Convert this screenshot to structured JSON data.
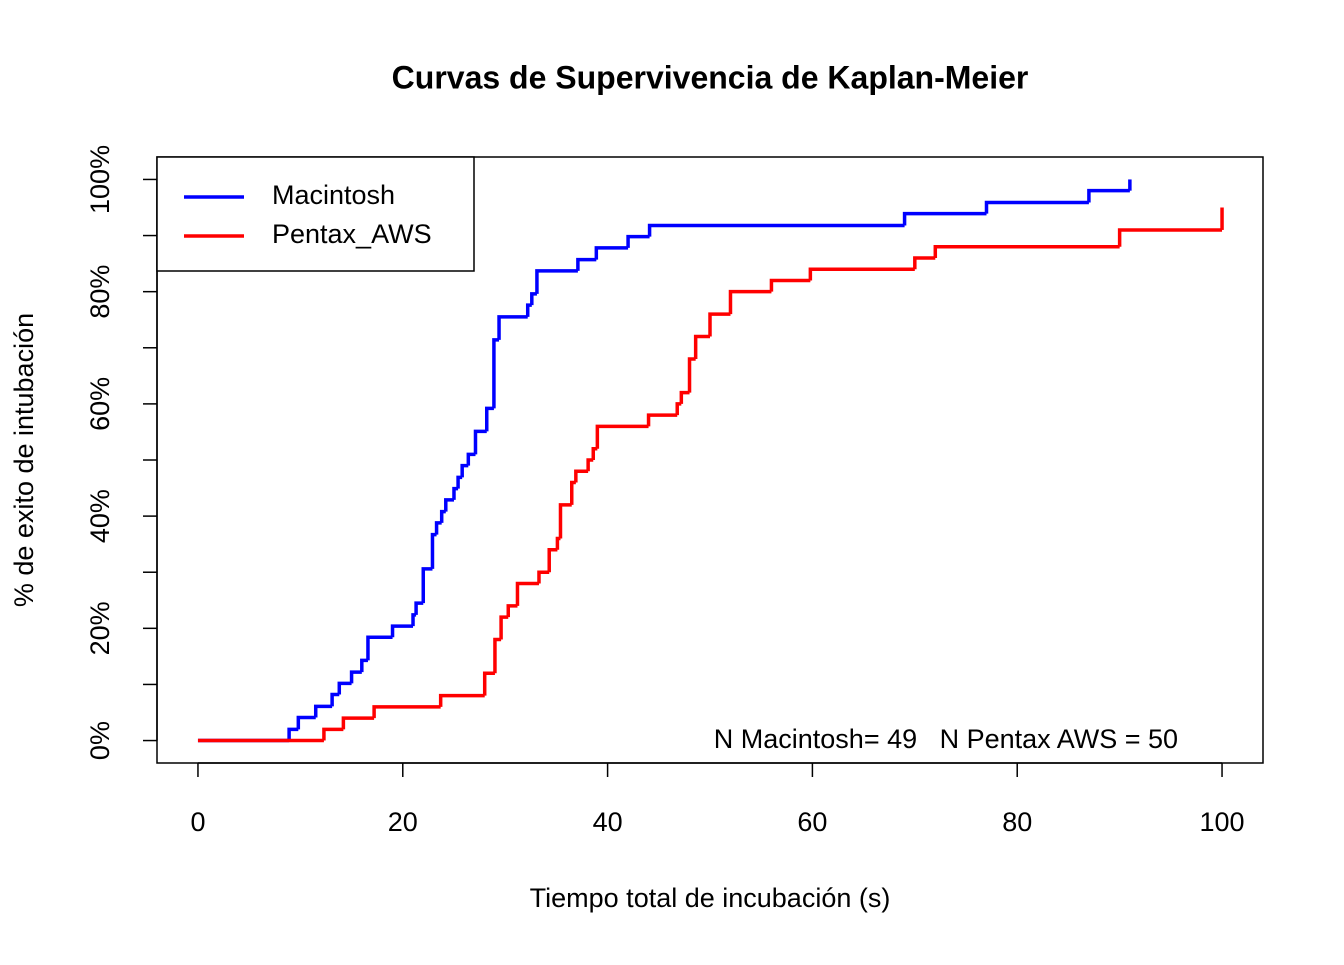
{
  "chart_data": {
    "type": "step",
    "title": "Curvas de Supervivencia de Kaplan-Meier",
    "x_label": "Tiempo total de incubación (s)",
    "y_label": "% de exito de intubación",
    "annotation": "N Macintosh= 49   N Pentax AWS = 50",
    "xlim": [
      -4,
      104
    ],
    "xticks": [
      0,
      20,
      40,
      60,
      80,
      100
    ],
    "ylim": [
      -4,
      104
    ],
    "yticks": [
      {
        "value": 0,
        "label": "0%"
      },
      {
        "value": 20,
        "label": "20%"
      },
      {
        "value": 40,
        "label": "40%"
      },
      {
        "value": 60,
        "label": "60%"
      },
      {
        "value": 80,
        "label": "80%"
      },
      {
        "value": 100,
        "label": "100%"
      }
    ],
    "yminorticks": [
      10,
      30,
      50,
      70,
      90
    ],
    "legend": "top-left",
    "series": [
      {
        "name": "Macintosh",
        "color": "#0000ff",
        "x": [
          0,
          8.9,
          9.8,
          11.5,
          13.1,
          13.8,
          15.0,
          16.0,
          16.6,
          19.0,
          21.0,
          21.3,
          22.0,
          22.9,
          23.3,
          23.8,
          24.2,
          25.0,
          25.4,
          25.8,
          26.4,
          27.1,
          28.2,
          28.9,
          29.4,
          32.2,
          32.6,
          33.1,
          37.1,
          38.9,
          42.0,
          44.1,
          69.0,
          77.0,
          87.0,
          91.0
        ],
        "values": [
          0,
          2.0,
          4.1,
          6.1,
          8.2,
          10.2,
          12.2,
          14.3,
          18.4,
          20.4,
          22.4,
          24.5,
          30.6,
          36.7,
          38.8,
          40.8,
          42.9,
          44.9,
          46.9,
          49.0,
          51.0,
          55.1,
          59.2,
          71.4,
          75.5,
          77.6,
          79.6,
          83.7,
          85.7,
          87.8,
          89.8,
          91.8,
          93.9,
          95.9,
          98.0,
          100
        ]
      },
      {
        "name": "Pentax_AWS",
        "color": "#ff0000",
        "x": [
          0,
          12.3,
          14.2,
          17.2,
          23.7,
          28.0,
          29.0,
          29.6,
          30.3,
          31.2,
          33.3,
          34.3,
          35.1,
          35.4,
          36.5,
          36.9,
          38.1,
          38.6,
          39.0,
          44.0,
          46.8,
          47.2,
          48.0,
          48.6,
          50.0,
          52.0,
          56.0,
          59.8,
          70.0,
          72.0,
          90.0,
          100
        ],
        "values": [
          0,
          2,
          4,
          6,
          8,
          12,
          18,
          22,
          24,
          28,
          30,
          34,
          36,
          42,
          46,
          48,
          50,
          52,
          56,
          58,
          60,
          62,
          68,
          72,
          76,
          80,
          82,
          84,
          86,
          88,
          91,
          95
        ]
      }
    ]
  }
}
